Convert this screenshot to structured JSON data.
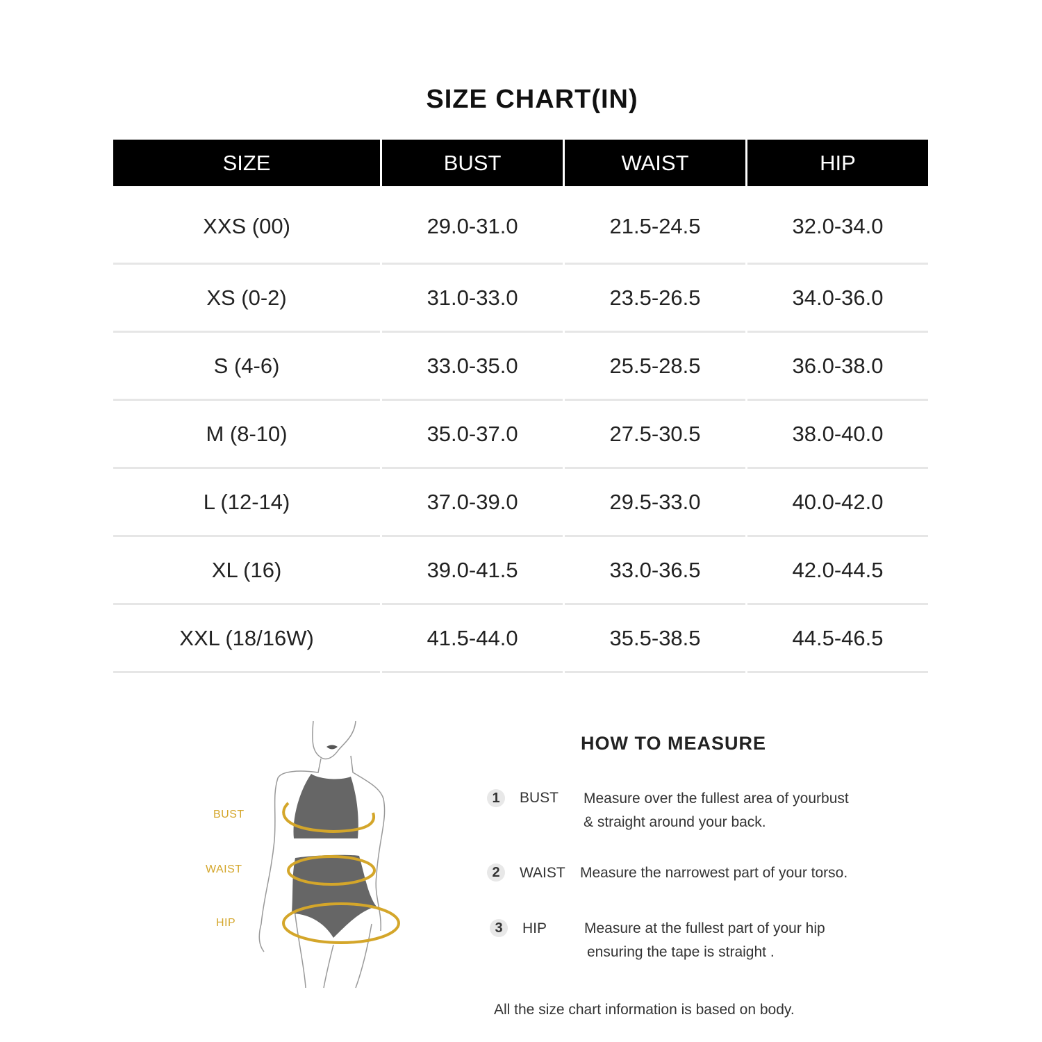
{
  "title": "SIZE CHART(IN)",
  "table": {
    "headers": [
      "SIZE",
      "BUST",
      "WAIST",
      "HIP"
    ],
    "rows": [
      [
        "XXS (00)",
        "29.0-31.0",
        "21.5-24.5",
        "32.0-34.0"
      ],
      [
        "XS (0-2)",
        "31.0-33.0",
        "23.5-26.5",
        "34.0-36.0"
      ],
      [
        "S (4-6)",
        "33.0-35.0",
        "25.5-28.5",
        "36.0-38.0"
      ],
      [
        "M (8-10)",
        "35.0-37.0",
        "27.5-30.5",
        "38.0-40.0"
      ],
      [
        "L (12-14)",
        "37.0-39.0",
        "29.5-33.0",
        "40.0-42.0"
      ],
      [
        "XL (16)",
        "39.0-41.5",
        "33.0-36.5",
        "42.0-44.5"
      ],
      [
        "XXL (18/16W)",
        "41.5-44.0",
        "35.5-38.5",
        "44.5-46.5"
      ]
    ]
  },
  "figure": {
    "labels": [
      "BUST",
      "WAIST",
      "HIP"
    ],
    "accent_color": "#d4a62a",
    "garment_color": "#666666"
  },
  "how_to_measure": {
    "title": "HOW TO MEASURE",
    "steps": [
      {
        "num": "1",
        "label": "BUST",
        "lines": [
          "Measure over the fullest area of yourbust",
          "& straight around your back."
        ]
      },
      {
        "num": "2",
        "label": "WAIST",
        "lines": [
          "Measure the narrowest part of your torso."
        ]
      },
      {
        "num": "3",
        "label": "HIP",
        "lines": [
          "Measure at the fullest part of your hip",
          "ensuring the tape is straight ."
        ]
      }
    ]
  },
  "note": "All the size chart information is based on body."
}
